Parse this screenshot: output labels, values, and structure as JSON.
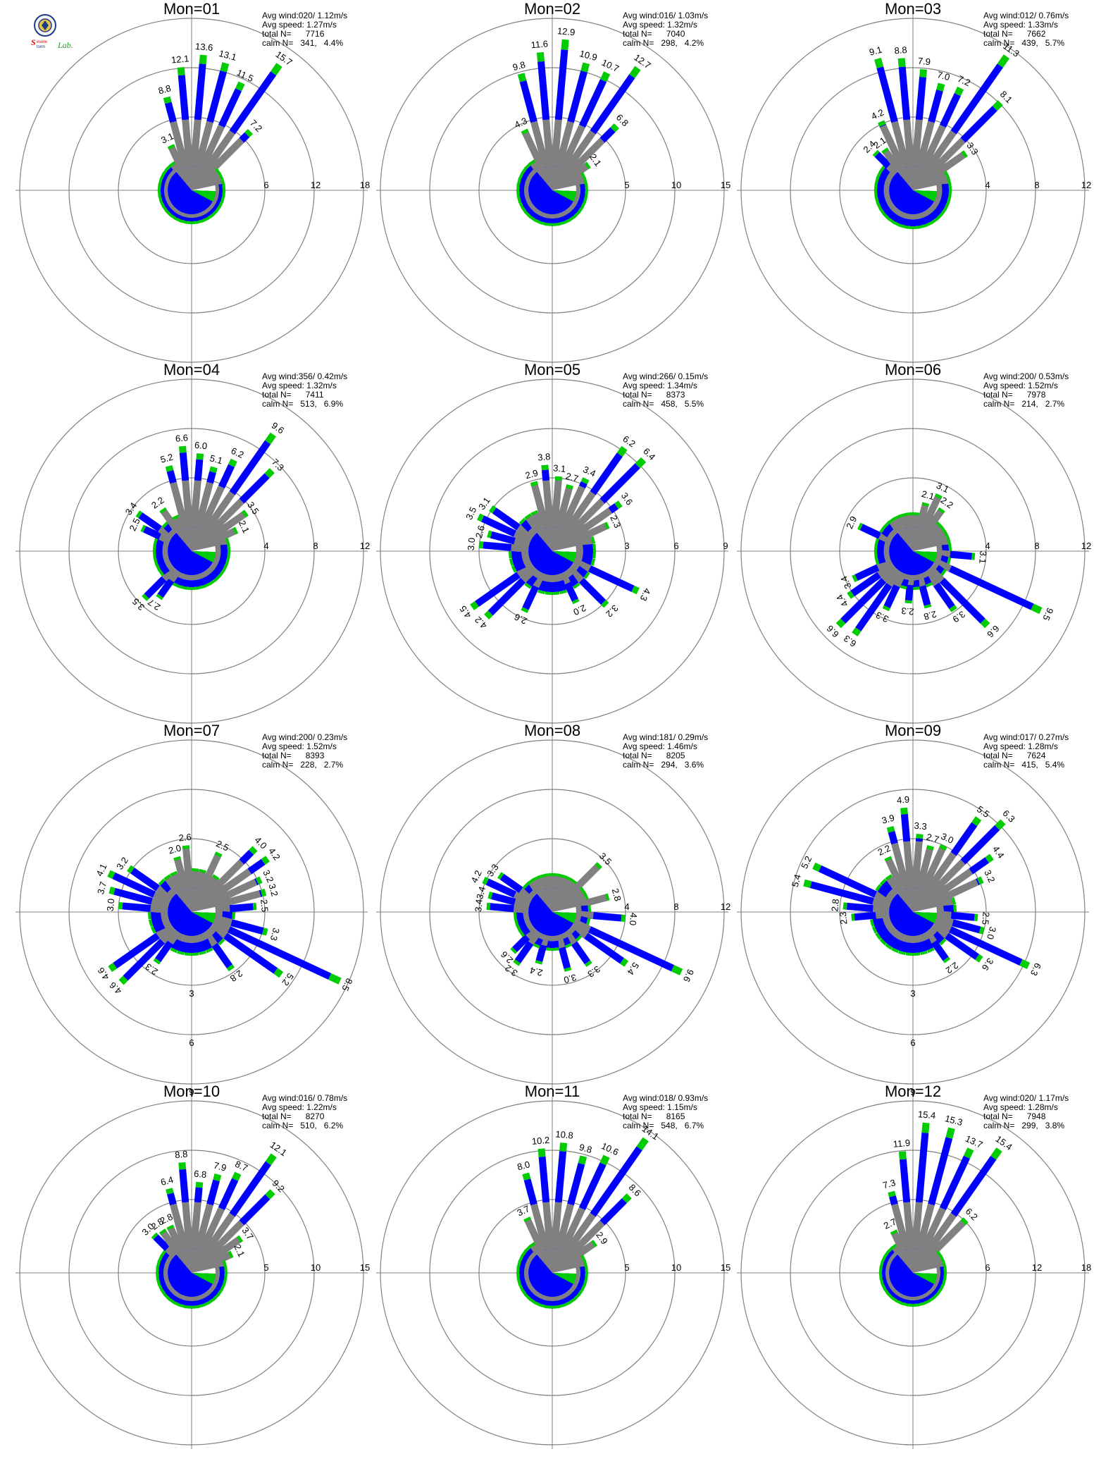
{
  "logo": {
    "brand": "SEVERE STORM Lab."
  },
  "colors": {
    "blue": "#0000ff",
    "green": "#00cc00",
    "gray": "#808080",
    "calm_white": "#ffffff",
    "axis": "#000000",
    "ring": "#808080"
  },
  "labels": {
    "avg_wind": "Avg wind:",
    "avg_speed": "Avg speed:",
    "total": "total N=",
    "calm": "calm N="
  },
  "chart_data": [
    {
      "type": "wind-rose",
      "title": "Mon=01",
      "avg_wind": "020/ 1.12m/s",
      "avg_speed": "1.27m/s",
      "total_n": "7716",
      "calm_n": "341,",
      "calm_pct": "4.4%",
      "ticks": [
        "6",
        "12",
        "18"
      ],
      "rmax": 18,
      "labeled": [
        {
          "dir": 335,
          "pct": 3.1
        },
        {
          "dir": 345,
          "pct": 8.8
        },
        {
          "dir": 355,
          "pct": 12.1
        },
        {
          "dir": 5,
          "pct": 13.6
        },
        {
          "dir": 15,
          "pct": 13.1
        },
        {
          "dir": 25,
          "pct": 11.5
        },
        {
          "dir": 35,
          "pct": 15.7
        },
        {
          "dir": 45,
          "pct": 7.2
        }
      ]
    },
    {
      "type": "wind-rose",
      "title": "Mon=02",
      "avg_wind": "016/ 1.03m/s",
      "avg_speed": "1.32m/s",
      "total_n": "7040",
      "calm_n": "298,",
      "calm_pct": "4.2%",
      "ticks": [
        "5",
        "10",
        "15"
      ],
      "rmax": 15,
      "labeled": [
        {
          "dir": 335,
          "pct": 4.3
        },
        {
          "dir": 345,
          "pct": 9.8
        },
        {
          "dir": 355,
          "pct": 11.6
        },
        {
          "dir": 5,
          "pct": 12.9
        },
        {
          "dir": 15,
          "pct": 10.9
        },
        {
          "dir": 25,
          "pct": 10.7
        },
        {
          "dir": 35,
          "pct": 12.7
        },
        {
          "dir": 45,
          "pct": 6.8
        },
        {
          "dir": 55,
          "pct": 2.1
        }
      ]
    },
    {
      "type": "wind-rose",
      "title": "Mon=03",
      "avg_wind": "012/ 0.76m/s",
      "avg_speed": "1.33m/s",
      "total_n": "7662",
      "calm_n": "439,",
      "calm_pct": "5.7%",
      "ticks": [
        "4",
        "8",
        "12"
      ],
      "rmax": 12,
      "labeled": [
        {
          "dir": 315,
          "pct": 2.4
        },
        {
          "dir": 325,
          "pct": 2.1
        },
        {
          "dir": 335,
          "pct": 4.2
        },
        {
          "dir": 345,
          "pct": 9.1
        },
        {
          "dir": 355,
          "pct": 8.8
        },
        {
          "dir": 5,
          "pct": 7.9
        },
        {
          "dir": 15,
          "pct": 7.0
        },
        {
          "dir": 25,
          "pct": 7.2
        },
        {
          "dir": 35,
          "pct": 11.3
        },
        {
          "dir": 45,
          "pct": 8.1
        },
        {
          "dir": 55,
          "pct": 3.3
        }
      ]
    },
    {
      "type": "wind-rose",
      "title": "Mon=04",
      "avg_wind": "356/ 0.42m/s",
      "avg_speed": "1.32m/s",
      "total_n": "7411",
      "calm_n": "513,",
      "calm_pct": "6.9%",
      "ticks": [
        "4",
        "8",
        "12"
      ],
      "rmax": 12,
      "labeled": [
        {
          "dir": 295,
          "pct": 2.5
        },
        {
          "dir": 305,
          "pct": 3.4
        },
        {
          "dir": 325,
          "pct": 2.2
        },
        {
          "dir": 345,
          "pct": 5.2
        },
        {
          "dir": 355,
          "pct": 6.6
        },
        {
          "dir": 5,
          "pct": 6.0
        },
        {
          "dir": 15,
          "pct": 5.1
        },
        {
          "dir": 25,
          "pct": 6.2
        },
        {
          "dir": 35,
          "pct": 9.6
        },
        {
          "dir": 45,
          "pct": 7.3
        },
        {
          "dir": 55,
          "pct": 3.5
        },
        {
          "dir": 65,
          "pct": 2.1
        },
        {
          "dir": 215,
          "pct": 2.7
        },
        {
          "dir": 225,
          "pct": 3.5
        }
      ]
    },
    {
      "type": "wind-rose",
      "title": "Mon=05",
      "avg_wind": "266/ 0.15m/s",
      "avg_speed": "1.34m/s",
      "total_n": "8373",
      "calm_n": "458,",
      "calm_pct": "5.5%",
      "ticks": [
        "3",
        "6",
        "9"
      ],
      "rmax": 9,
      "labeled": [
        {
          "dir": 295,
          "pct": 3.5
        },
        {
          "dir": 305,
          "pct": 3.1
        },
        {
          "dir": 285,
          "pct": 2.6
        },
        {
          "dir": 275,
          "pct": 3.0
        },
        {
          "dir": 345,
          "pct": 2.9
        },
        {
          "dir": 355,
          "pct": 3.8
        },
        {
          "dir": 5,
          "pct": 3.1
        },
        {
          "dir": 15,
          "pct": 2.7
        },
        {
          "dir": 25,
          "pct": 3.4
        },
        {
          "dir": 35,
          "pct": 6.2
        },
        {
          "dir": 45,
          "pct": 6.4
        },
        {
          "dir": 55,
          "pct": 3.6
        },
        {
          "dir": 65,
          "pct": 2.3
        },
        {
          "dir": 115,
          "pct": 4.3
        },
        {
          "dir": 135,
          "pct": 3.2
        },
        {
          "dir": 155,
          "pct": 2.0
        },
        {
          "dir": 205,
          "pct": 2.6
        },
        {
          "dir": 225,
          "pct": 4.2
        },
        {
          "dir": 235,
          "pct": 4.5
        }
      ]
    },
    {
      "type": "wind-rose",
      "title": "Mon=06",
      "avg_wind": "200/ 0.53m/s",
      "avg_speed": "1.52m/s",
      "total_n": "7978",
      "calm_n": "214,",
      "calm_pct": "2.7%",
      "ticks": [
        "4",
        "8",
        "12"
      ],
      "rmax": 12,
      "labeled": [
        {
          "dir": 15,
          "pct": 2.1
        },
        {
          "dir": 25,
          "pct": 3.1
        },
        {
          "dir": 35,
          "pct": 2.2
        },
        {
          "dir": 95,
          "pct": 3.1
        },
        {
          "dir": 115,
          "pct": 9.5
        },
        {
          "dir": 135,
          "pct": 6.6
        },
        {
          "dir": 145,
          "pct": 3.9
        },
        {
          "dir": 165,
          "pct": 2.8
        },
        {
          "dir": 185,
          "pct": 2.3
        },
        {
          "dir": 205,
          "pct": 3.3
        },
        {
          "dir": 215,
          "pct": 6.3
        },
        {
          "dir": 225,
          "pct": 6.6
        },
        {
          "dir": 235,
          "pct": 4.4
        },
        {
          "dir": 245,
          "pct": 3.4
        },
        {
          "dir": 295,
          "pct": 2.9
        }
      ]
    },
    {
      "type": "wind-rose",
      "title": "Mon=07",
      "avg_wind": "200/ 0.23m/s",
      "avg_speed": "1.52m/s",
      "total_n": "8393",
      "calm_n": "228,",
      "calm_pct": "2.7%",
      "ticks": [
        "3",
        "6",
        "9"
      ],
      "rmax": 9,
      "tick_axis": "south",
      "labeled": [
        {
          "dir": 345,
          "pct": 2.0
        },
        {
          "dir": 355,
          "pct": 2.6
        },
        {
          "dir": 25,
          "pct": 2.5
        },
        {
          "dir": 45,
          "pct": 4.0
        },
        {
          "dir": 55,
          "pct": 4.2
        },
        {
          "dir": 65,
          "pct": 3.2
        },
        {
          "dir": 75,
          "pct": 3.2
        },
        {
          "dir": 85,
          "pct": 2.5
        },
        {
          "dir": 105,
          "pct": 3.3
        },
        {
          "dir": 115,
          "pct": 8.5
        },
        {
          "dir": 125,
          "pct": 5.2
        },
        {
          "dir": 145,
          "pct": 2.8
        },
        {
          "dir": 215,
          "pct": 2.3
        },
        {
          "dir": 225,
          "pct": 4.6
        },
        {
          "dir": 235,
          "pct": 4.6
        },
        {
          "dir": 275,
          "pct": 3.0
        },
        {
          "dir": 285,
          "pct": 3.7
        },
        {
          "dir": 295,
          "pct": 4.1
        },
        {
          "dir": 305,
          "pct": 3.2
        }
      ]
    },
    {
      "type": "wind-rose",
      "title": "Mon=08",
      "avg_wind": "181/ 0.29m/s",
      "avg_speed": "1.46m/s",
      "total_n": "8205",
      "calm_n": "294,",
      "calm_pct": "3.6%",
      "ticks": [
        "4",
        "8",
        "12"
      ],
      "rmax": 12,
      "labeled": [
        {
          "dir": 305,
          "pct": 3.3
        },
        {
          "dir": 295,
          "pct": 4.2
        },
        {
          "dir": 285,
          "pct": 3.4
        },
        {
          "dir": 275,
          "pct": 3.4
        },
        {
          "dir": 45,
          "pct": 3.5
        },
        {
          "dir": 75,
          "pct": 2.8
        },
        {
          "dir": 95,
          "pct": 4.0
        },
        {
          "dir": 115,
          "pct": 9.6
        },
        {
          "dir": 125,
          "pct": 5.4
        },
        {
          "dir": 145,
          "pct": 3.3
        },
        {
          "dir": 165,
          "pct": 3.0
        },
        {
          "dir": 195,
          "pct": 2.4
        },
        {
          "dir": 215,
          "pct": 3.2
        },
        {
          "dir": 225,
          "pct": 2.6
        }
      ]
    },
    {
      "type": "wind-rose",
      "title": "Mon=09",
      "avg_wind": "017/ 0.27m/s",
      "avg_speed": "1.28m/s",
      "total_n": "7624",
      "calm_n": "415,",
      "calm_pct": "5.4%",
      "ticks": [
        "3",
        "6",
        "9"
      ],
      "rmax": 9,
      "tick_axis": "south",
      "labeled": [
        {
          "dir": 295,
          "pct": 5.2
        },
        {
          "dir": 285,
          "pct": 5.4
        },
        {
          "dir": 275,
          "pct": 2.8
        },
        {
          "dir": 265,
          "pct": 2.3
        },
        {
          "dir": 335,
          "pct": 2.2
        },
        {
          "dir": 345,
          "pct": 3.9
        },
        {
          "dir": 355,
          "pct": 4.9
        },
        {
          "dir": 5,
          "pct": 3.3
        },
        {
          "dir": 15,
          "pct": 2.7
        },
        {
          "dir": 25,
          "pct": 3.0
        },
        {
          "dir": 35,
          "pct": 5.5
        },
        {
          "dir": 45,
          "pct": 6.3
        },
        {
          "dir": 55,
          "pct": 4.4
        },
        {
          "dir": 65,
          "pct": 3.2
        },
        {
          "dir": 95,
          "pct": 2.5
        },
        {
          "dir": 105,
          "pct": 3.0
        },
        {
          "dir": 115,
          "pct": 6.3
        },
        {
          "dir": 125,
          "pct": 3.6
        },
        {
          "dir": 145,
          "pct": 2.2
        }
      ]
    },
    {
      "type": "wind-rose",
      "title": "Mon=10",
      "avg_wind": "016/ 0.78m/s",
      "avg_speed": "1.22m/s",
      "total_n": "8270",
      "calm_n": "510,",
      "calm_pct": "6.2%",
      "ticks": [
        "5",
        "10",
        "15"
      ],
      "rmax": 15,
      "labeled": [
        {
          "dir": 315,
          "pct": 3.0
        },
        {
          "dir": 325,
          "pct": 2.8
        },
        {
          "dir": 335,
          "pct": 2.8
        },
        {
          "dir": 345,
          "pct": 6.4
        },
        {
          "dir": 355,
          "pct": 8.8
        },
        {
          "dir": 5,
          "pct": 6.8
        },
        {
          "dir": 15,
          "pct": 7.9
        },
        {
          "dir": 25,
          "pct": 8.7
        },
        {
          "dir": 35,
          "pct": 12.1
        },
        {
          "dir": 45,
          "pct": 9.2
        },
        {
          "dir": 55,
          "pct": 3.7
        },
        {
          "dir": 65,
          "pct": 2.1
        }
      ]
    },
    {
      "type": "wind-rose",
      "title": "Mon=11",
      "avg_wind": "018/ 0.93m/s",
      "avg_speed": "1.15m/s",
      "total_n": "8165",
      "calm_n": "548,",
      "calm_pct": "6.7%",
      "ticks": [
        "5",
        "10",
        "15"
      ],
      "rmax": 15,
      "labeled": [
        {
          "dir": 335,
          "pct": 3.7
        },
        {
          "dir": 345,
          "pct": 8.0
        },
        {
          "dir": 355,
          "pct": 10.2
        },
        {
          "dir": 5,
          "pct": 10.8
        },
        {
          "dir": 15,
          "pct": 9.8
        },
        {
          "dir": 25,
          "pct": 10.6
        },
        {
          "dir": 35,
          "pct": 14.1
        },
        {
          "dir": 45,
          "pct": 8.6
        },
        {
          "dir": 55,
          "pct": 2.9
        }
      ]
    },
    {
      "type": "wind-rose",
      "title": "Mon=12",
      "avg_wind": "020/ 1.17m/s",
      "avg_speed": "1.28m/s",
      "total_n": "7948",
      "calm_n": "299,",
      "calm_pct": "3.8%",
      "ticks": [
        "6",
        "12",
        "18"
      ],
      "rmax": 18,
      "labeled": [
        {
          "dir": 335,
          "pct": 2.7
        },
        {
          "dir": 345,
          "pct": 7.3
        },
        {
          "dir": 355,
          "pct": 11.9
        },
        {
          "dir": 5,
          "pct": 15.4
        },
        {
          "dir": 15,
          "pct": 15.3
        },
        {
          "dir": 25,
          "pct": 13.7
        },
        {
          "dir": 35,
          "pct": 15.4
        },
        {
          "dir": 45,
          "pct": 6.2
        }
      ]
    }
  ]
}
